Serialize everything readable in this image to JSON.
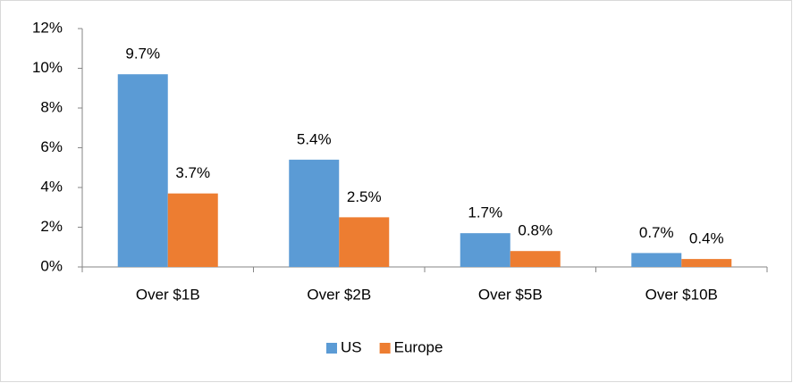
{
  "chart_data": {
    "type": "bar",
    "categories": [
      "Over $1B",
      "Over $2B",
      "Over $5B",
      "Over $10B"
    ],
    "series": [
      {
        "name": "US",
        "color": "#5b9bd5",
        "values": [
          9.7,
          5.4,
          1.7,
          0.7
        ],
        "value_labels": [
          "9.7%",
          "5.4%",
          "1.7%",
          "0.7%"
        ]
      },
      {
        "name": "Europe",
        "color": "#ed7d31",
        "values": [
          3.7,
          2.5,
          0.8,
          0.4
        ],
        "value_labels": [
          "3.7%",
          "2.5%",
          "0.8%",
          "0.4%"
        ]
      }
    ],
    "ylim": [
      0,
      12
    ],
    "yticks": [
      {
        "value": 0,
        "label": "0%"
      },
      {
        "value": 2,
        "label": "2%"
      },
      {
        "value": 4,
        "label": "4%"
      },
      {
        "value": 6,
        "label": "6%"
      },
      {
        "value": 8,
        "label": "8%"
      },
      {
        "value": 10,
        "label": "10%"
      },
      {
        "value": 12,
        "label": "12%"
      }
    ],
    "grid": false,
    "legend": "bottom"
  }
}
